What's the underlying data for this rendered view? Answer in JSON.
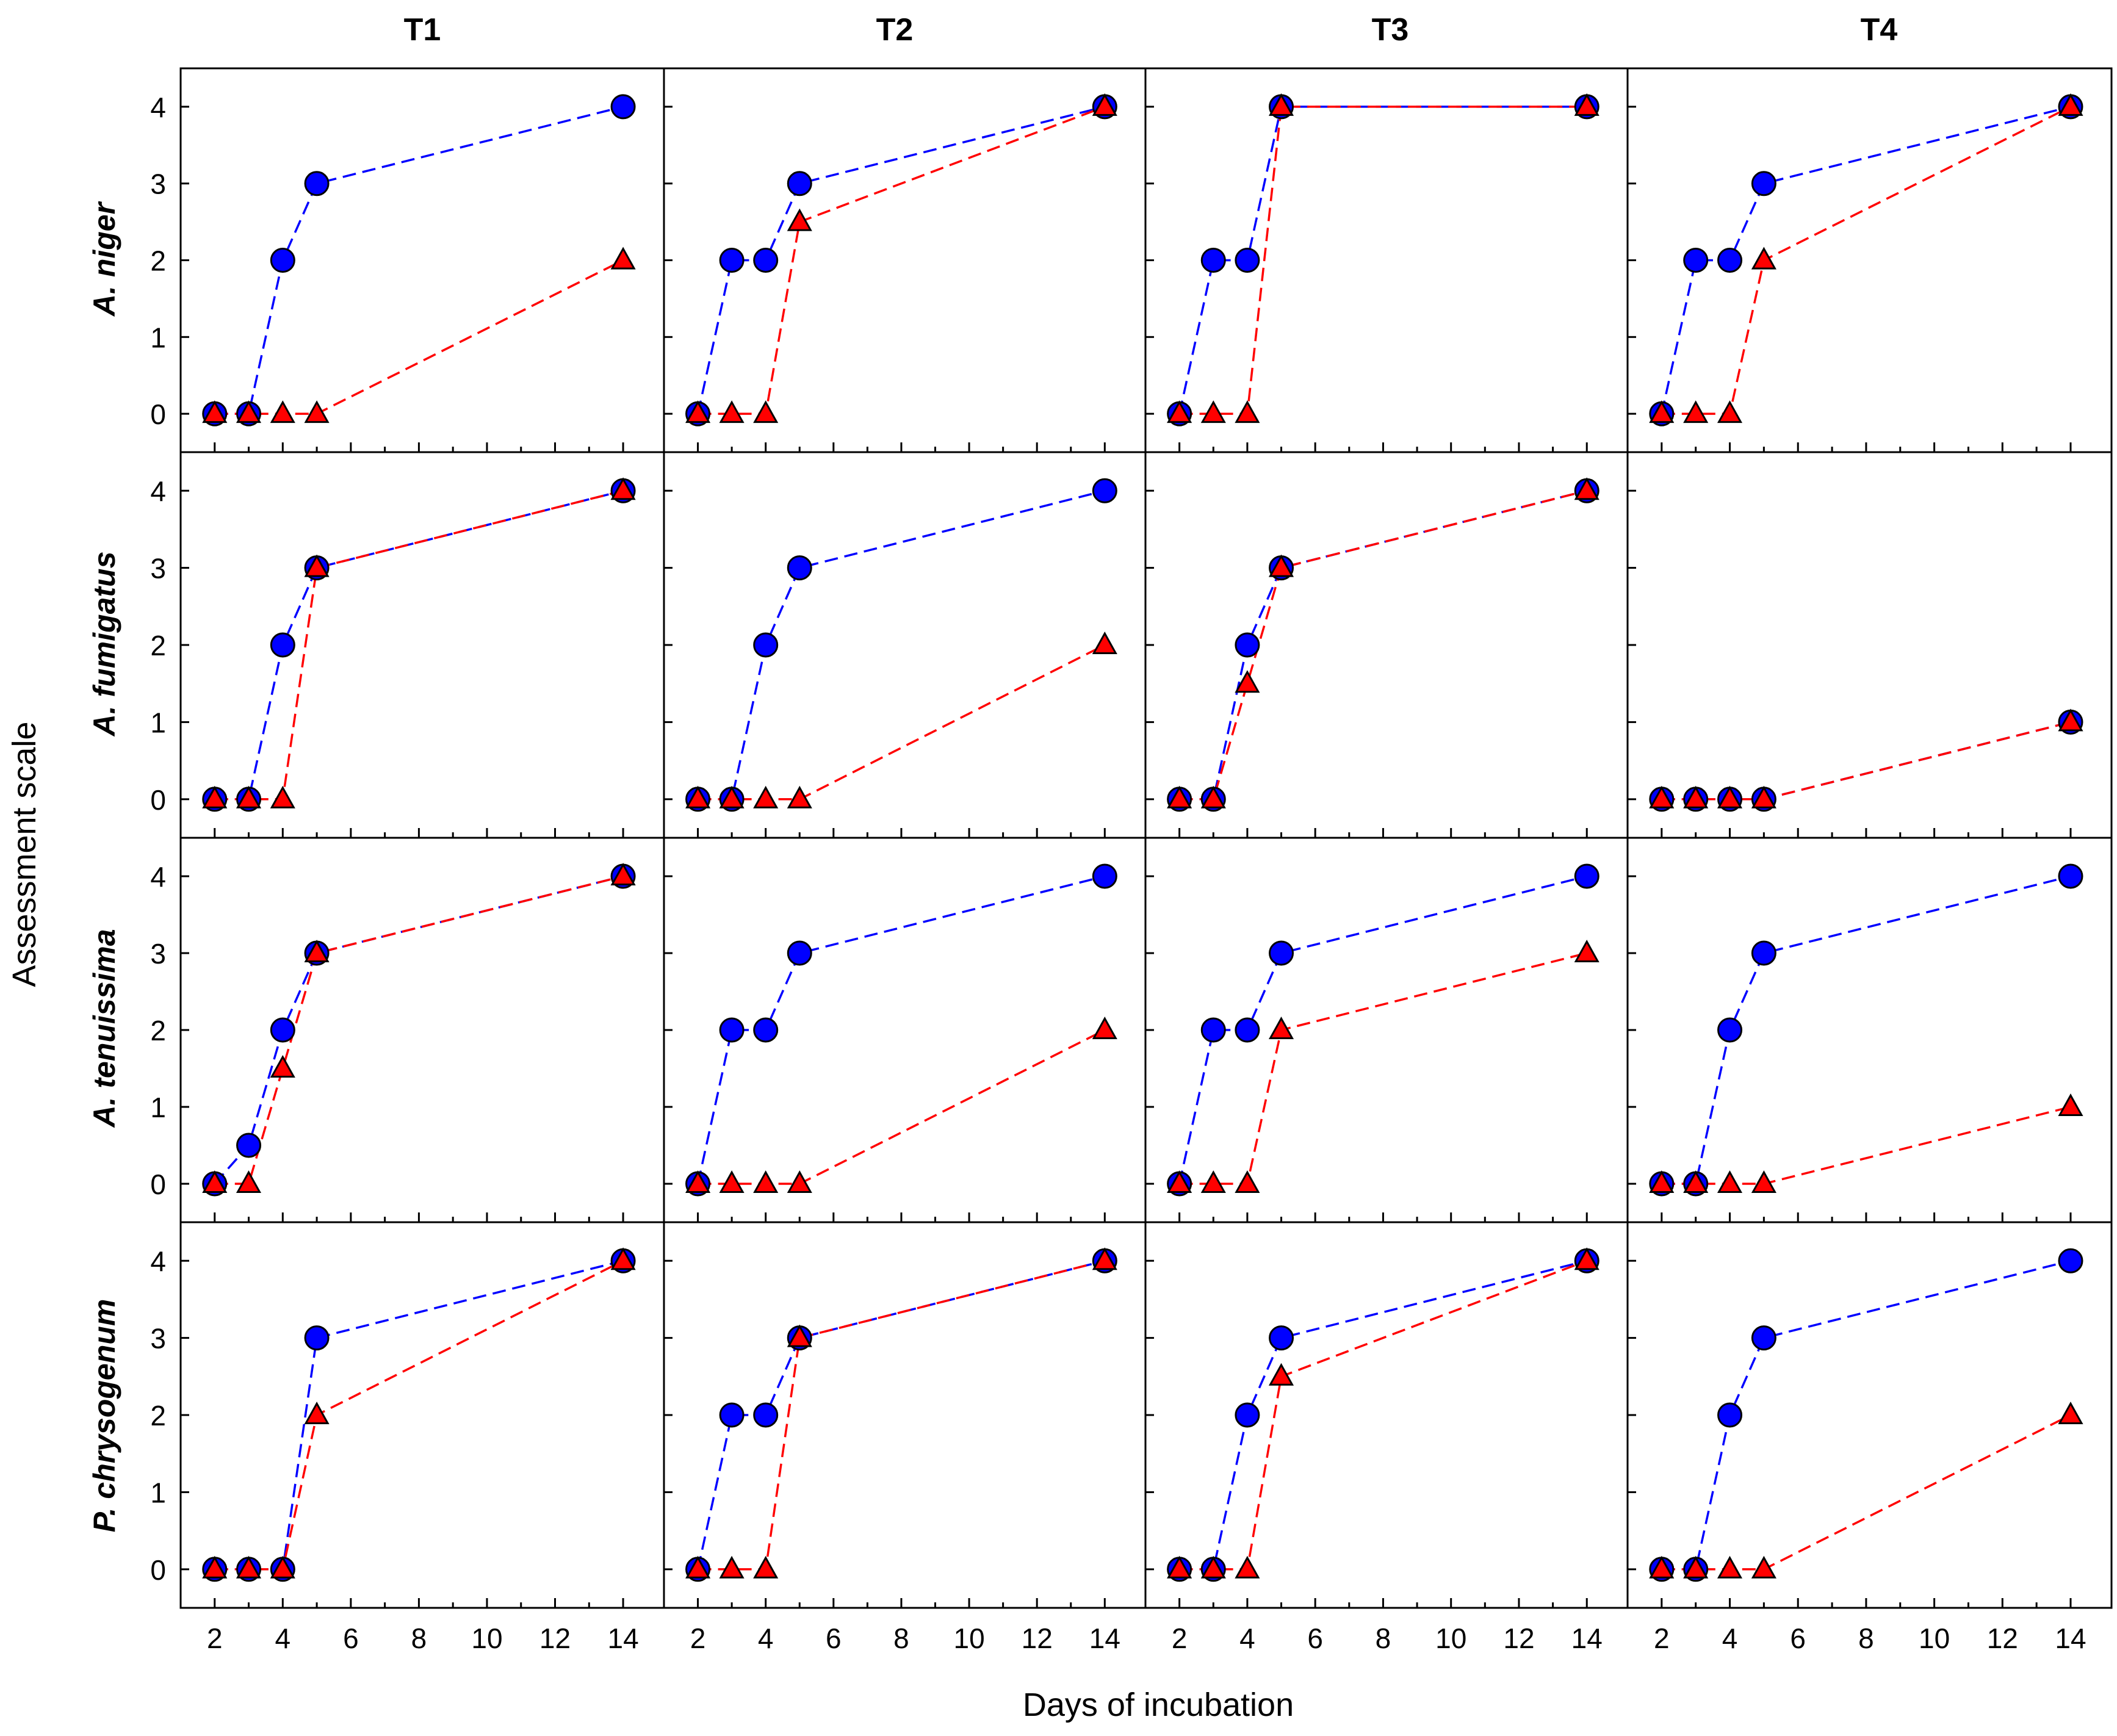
{
  "figure": {
    "y_axis_title": "Assessment scale",
    "x_axis_title": "Days of incubation",
    "column_titles": [
      "T1",
      "T2",
      "T3",
      "T4"
    ],
    "row_titles": [
      "A. niger",
      "A. fumigatus",
      "A. tenuissima",
      "P. chrysogenum"
    ],
    "colors": {
      "circle_series": "#0000ff",
      "triangle_series": "#ff0000",
      "frame": "#000000"
    },
    "y_ticks": [
      "0",
      "1",
      "2",
      "3",
      "4"
    ],
    "x_ticks": [
      "2",
      "4",
      "6",
      "8",
      "10",
      "12",
      "14"
    ]
  },
  "chart_data": {
    "type": "line",
    "layout": "small multiples, 4 rows (fungus) x 4 columns (treatment)",
    "xlabel": "Days of incubation",
    "ylabel": "Assessment scale",
    "xlim": [
      1,
      15.2
    ],
    "ylim": [
      -0.5,
      4.5
    ],
    "x": [
      2,
      3,
      4,
      5,
      14
    ],
    "series_markers": {
      "circle": "blue circles, blue dashed line",
      "triangle": "red triangles, red dashed line"
    },
    "panels": [
      {
        "row": "A. niger",
        "column": "T1",
        "circle": [
          0,
          0,
          2,
          3,
          4
        ],
        "triangle": [
          0,
          0,
          0,
          0,
          2
        ]
      },
      {
        "row": "A. niger",
        "column": "T2",
        "circle": [
          0,
          2,
          2,
          3,
          4
        ],
        "triangle": [
          0,
          0,
          0,
          2.5,
          4
        ]
      },
      {
        "row": "A. niger",
        "column": "T3",
        "circle": [
          0,
          2,
          2,
          4,
          4
        ],
        "triangle": [
          0,
          0,
          0,
          4,
          4
        ]
      },
      {
        "row": "A. niger",
        "column": "T4",
        "circle": [
          0,
          2,
          2,
          3,
          4
        ],
        "triangle": [
          0,
          0,
          0,
          2,
          4
        ]
      },
      {
        "row": "A. fumigatus",
        "column": "T1",
        "circle": [
          0,
          0,
          2,
          3,
          4
        ],
        "triangle": [
          0,
          0,
          0,
          3,
          4
        ]
      },
      {
        "row": "A. fumigatus",
        "column": "T2",
        "circle": [
          0,
          0,
          2,
          3,
          4
        ],
        "triangle": [
          0,
          0,
          0,
          0,
          2
        ]
      },
      {
        "row": "A. fumigatus",
        "column": "T3",
        "circle": [
          0,
          0,
          2,
          3,
          4
        ],
        "triangle": [
          0,
          0,
          1.5,
          3,
          4
        ]
      },
      {
        "row": "A. fumigatus",
        "column": "T4",
        "circle": [
          0,
          0,
          0,
          0,
          1
        ],
        "triangle": [
          0,
          0,
          0,
          0,
          1
        ]
      },
      {
        "row": "A. tenuissima",
        "column": "T1",
        "circle": [
          0,
          0.5,
          2,
          3,
          4
        ],
        "triangle": [
          0,
          0,
          1.5,
          3,
          4
        ]
      },
      {
        "row": "A. tenuissima",
        "column": "T2",
        "circle": [
          0,
          2,
          2,
          3,
          4
        ],
        "triangle": [
          0,
          0,
          0,
          0,
          2
        ]
      },
      {
        "row": "A. tenuissima",
        "column": "T3",
        "circle": [
          0,
          2,
          2,
          3,
          4
        ],
        "triangle": [
          0,
          0,
          0,
          2,
          3
        ]
      },
      {
        "row": "A. tenuissima",
        "column": "T4",
        "circle": [
          0,
          0,
          2,
          3,
          4
        ],
        "triangle": [
          0,
          0,
          0,
          0,
          1
        ]
      },
      {
        "row": "P. chrysogenum",
        "column": "T1",
        "circle": [
          0,
          0,
          0,
          3,
          4
        ],
        "triangle": [
          0,
          0,
          0,
          2,
          4
        ]
      },
      {
        "row": "P. chrysogenum",
        "column": "T2",
        "circle": [
          0,
          2,
          2,
          3,
          4
        ],
        "triangle": [
          0,
          0,
          0,
          3,
          4
        ]
      },
      {
        "row": "P. chrysogenum",
        "column": "T3",
        "circle": [
          0,
          0,
          2,
          3,
          4
        ],
        "triangle": [
          0,
          0,
          0,
          2.5,
          4
        ]
      },
      {
        "row": "P. chrysogenum",
        "column": "T4",
        "circle": [
          0,
          0,
          2,
          3,
          4
        ],
        "triangle": [
          0,
          0,
          0,
          0,
          2
        ]
      }
    ]
  }
}
